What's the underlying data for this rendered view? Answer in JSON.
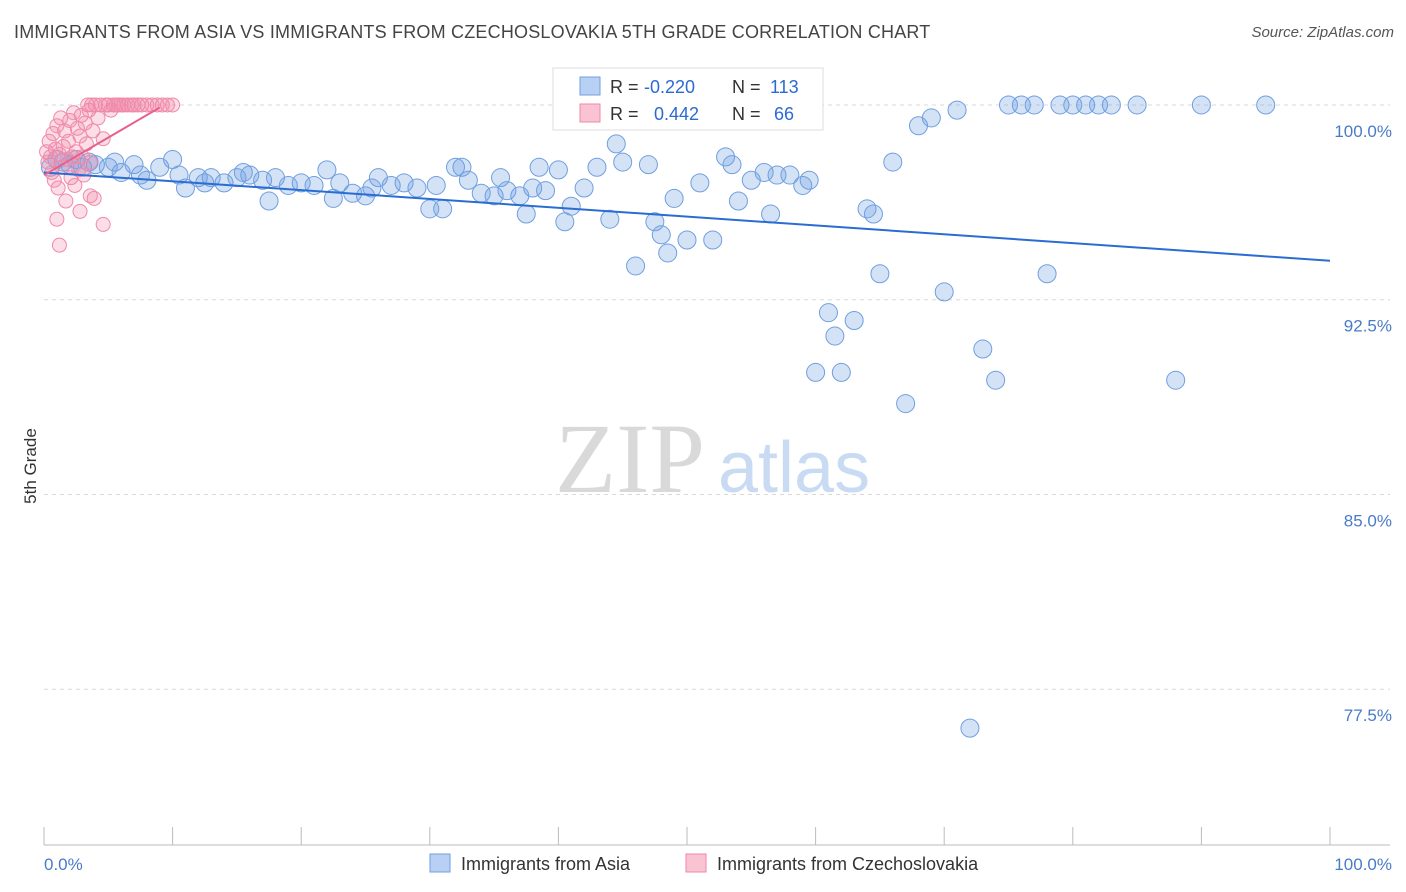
{
  "title": "IMMIGRANTS FROM ASIA VS IMMIGRANTS FROM CZECHOSLOVAKIA 5TH GRADE CORRELATION CHART",
  "source": "Source: ZipAtlas.com",
  "watermark": {
    "zip": "ZIP",
    "atlas": "atlas"
  },
  "colors": {
    "blue": "#6f9fe0",
    "blue_line": "#2a6dd2",
    "pink": "#f08aaa",
    "pink_line": "#e8608a",
    "tick": "#4a7bc8"
  },
  "legend": [
    {
      "r_label": "R = ",
      "r_value": "-0.220",
      "n_label": "N = ",
      "n_value": "113"
    },
    {
      "r_label": "R = ",
      "r_value": "0.442",
      "n_label": "N = ",
      "n_value": "66"
    }
  ],
  "chart_data": {
    "type": "scatter",
    "title": "IMMIGRANTS FROM ASIA VS IMMIGRANTS FROM CZECHOSLOVAKIA 5TH GRADE CORRELATION CHART",
    "xlabel": "",
    "ylabel": "5th Grade",
    "xlim": [
      0,
      100
    ],
    "ylim": [
      71.5,
      101.5
    ],
    "x_tick_labels": [
      "0.0%",
      "100.0%"
    ],
    "y_ticks": [
      100.0,
      92.5,
      85.0,
      77.5
    ],
    "y_tick_labels": [
      "100.0%",
      "92.5%",
      "85.0%",
      "77.5%"
    ],
    "series": [
      {
        "name": "Immigrants from Asia",
        "color": "#6f9fe0",
        "trend": {
          "x": [
            0,
            100
          ],
          "y": [
            97.4,
            94.0
          ]
        },
        "points": [
          [
            0.5,
            97.6
          ],
          [
            1,
            97.9
          ],
          [
            1.5,
            97.8
          ],
          [
            2,
            97.7
          ],
          [
            2.5,
            97.9
          ],
          [
            3,
            97.6
          ],
          [
            3.5,
            97.8
          ],
          [
            4,
            97.7
          ],
          [
            5,
            97.6
          ],
          [
            5.5,
            97.8
          ],
          [
            6,
            97.4
          ],
          [
            7,
            97.7
          ],
          [
            7.5,
            97.3
          ],
          [
            8,
            97.1
          ],
          [
            9,
            97.6
          ],
          [
            10,
            97.9
          ],
          [
            10.5,
            97.3
          ],
          [
            11,
            96.8
          ],
          [
            12,
            97.2
          ],
          [
            12.5,
            97.0
          ],
          [
            13,
            97.2
          ],
          [
            14,
            97.0
          ],
          [
            15,
            97.2
          ],
          [
            15.5,
            97.4
          ],
          [
            16,
            97.3
          ],
          [
            17,
            97.1
          ],
          [
            17.5,
            96.3
          ],
          [
            18,
            97.2
          ],
          [
            19,
            96.9
          ],
          [
            20,
            97.0
          ],
          [
            21,
            96.9
          ],
          [
            22,
            97.5
          ],
          [
            22.5,
            96.4
          ],
          [
            23,
            97.0
          ],
          [
            24,
            96.6
          ],
          [
            25,
            96.5
          ],
          [
            25.5,
            96.8
          ],
          [
            26,
            97.2
          ],
          [
            27,
            96.9
          ],
          [
            28,
            97.0
          ],
          [
            29,
            96.8
          ],
          [
            30,
            96.0
          ],
          [
            30.5,
            96.9
          ],
          [
            31,
            96.0
          ],
          [
            32,
            97.6
          ],
          [
            32.5,
            97.6
          ],
          [
            33,
            97.1
          ],
          [
            34,
            96.6
          ],
          [
            35,
            96.5
          ],
          [
            35.5,
            97.2
          ],
          [
            36,
            96.7
          ],
          [
            37,
            96.5
          ],
          [
            37.5,
            95.8
          ],
          [
            38,
            96.8
          ],
          [
            38.5,
            97.6
          ],
          [
            39,
            96.7
          ],
          [
            40,
            97.5
          ],
          [
            40.5,
            95.5
          ],
          [
            41,
            96.1
          ],
          [
            42,
            96.8
          ],
          [
            43,
            97.6
          ],
          [
            44,
            95.6
          ],
          [
            44.5,
            98.5
          ],
          [
            45,
            97.8
          ],
          [
            46,
            93.8
          ],
          [
            47,
            97.7
          ],
          [
            47.5,
            95.5
          ],
          [
            48,
            95.0
          ],
          [
            48.5,
            94.3
          ],
          [
            49,
            96.4
          ],
          [
            50,
            94.8
          ],
          [
            51,
            97.0
          ],
          [
            52,
            94.8
          ],
          [
            53,
            98.0
          ],
          [
            53.5,
            97.7
          ],
          [
            54,
            96.3
          ],
          [
            55,
            97.1
          ],
          [
            56,
            97.4
          ],
          [
            56.5,
            95.8
          ],
          [
            57,
            97.3
          ],
          [
            58,
            97.3
          ],
          [
            59,
            96.9
          ],
          [
            59.5,
            97.1
          ],
          [
            60,
            89.7
          ],
          [
            61,
            92.0
          ],
          [
            61.5,
            91.1
          ],
          [
            62,
            89.7
          ],
          [
            63,
            91.7
          ],
          [
            64,
            96.0
          ],
          [
            64.5,
            95.8
          ],
          [
            65,
            93.5
          ],
          [
            66,
            97.8
          ],
          [
            67,
            88.5
          ],
          [
            68,
            99.2
          ],
          [
            69,
            99.5
          ],
          [
            70,
            92.8
          ],
          [
            71,
            99.8
          ],
          [
            72,
            76.0
          ],
          [
            73,
            90.6
          ],
          [
            74,
            89.4
          ],
          [
            75,
            100
          ],
          [
            76,
            100
          ],
          [
            77,
            100
          ],
          [
            78,
            93.5
          ],
          [
            79,
            100
          ],
          [
            80,
            100
          ],
          [
            81,
            100
          ],
          [
            82,
            100
          ],
          [
            83,
            100
          ],
          [
            85,
            100
          ],
          [
            88,
            89.4
          ],
          [
            90,
            100
          ],
          [
            95,
            100
          ]
        ]
      },
      {
        "name": "Immigrants from Czechoslovakia",
        "color": "#f08aaa",
        "trend": {
          "x": [
            0,
            9
          ],
          "y": [
            97.3,
            99.9
          ]
        },
        "points": [
          [
            0.2,
            98.2
          ],
          [
            0.3,
            97.8
          ],
          [
            0.4,
            98.6
          ],
          [
            0.5,
            98.0
          ],
          [
            0.6,
            97.4
          ],
          [
            0.7,
            98.9
          ],
          [
            0.8,
            97.1
          ],
          [
            0.9,
            98.3
          ],
          [
            1.0,
            99.2
          ],
          [
            1.1,
            96.8
          ],
          [
            1.2,
            98.1
          ],
          [
            1.3,
            99.5
          ],
          [
            1.4,
            97.6
          ],
          [
            1.5,
            98.4
          ],
          [
            1.6,
            99.0
          ],
          [
            1.7,
            96.3
          ],
          [
            1.8,
            97.9
          ],
          [
            1.9,
            98.6
          ],
          [
            2.0,
            99.4
          ],
          [
            2.1,
            97.2
          ],
          [
            2.2,
            98.0
          ],
          [
            2.3,
            99.7
          ],
          [
            2.4,
            96.9
          ],
          [
            2.5,
            98.2
          ],
          [
            2.6,
            99.1
          ],
          [
            2.7,
            97.5
          ],
          [
            2.8,
            98.8
          ],
          [
            2.9,
            99.6
          ],
          [
            3.0,
            98.0
          ],
          [
            3.1,
            97.3
          ],
          [
            3.2,
            99.3
          ],
          [
            3.3,
            98.5
          ],
          [
            3.4,
            100
          ],
          [
            3.5,
            99.8
          ],
          [
            3.6,
            97.8
          ],
          [
            3.7,
            100
          ],
          [
            3.8,
            99.0
          ],
          [
            3.9,
            96.4
          ],
          [
            4.0,
            100
          ],
          [
            4.2,
            99.5
          ],
          [
            4.4,
            100
          ],
          [
            4.6,
            98.7
          ],
          [
            4.8,
            100
          ],
          [
            5.0,
            100
          ],
          [
            5.2,
            99.8
          ],
          [
            5.4,
            100
          ],
          [
            5.6,
            100
          ],
          [
            5.8,
            100
          ],
          [
            6.0,
            100
          ],
          [
            6.2,
            100
          ],
          [
            6.5,
            100
          ],
          [
            6.8,
            100
          ],
          [
            7.0,
            100
          ],
          [
            7.3,
            100
          ],
          [
            7.6,
            100
          ],
          [
            8.0,
            100
          ],
          [
            8.4,
            100
          ],
          [
            8.8,
            100
          ],
          [
            9.2,
            100
          ],
          [
            9.6,
            100
          ],
          [
            10.0,
            100
          ],
          [
            1.2,
            94.6
          ],
          [
            2.8,
            95.9
          ],
          [
            3.6,
            96.5
          ],
          [
            4.6,
            95.4
          ],
          [
            1.0,
            95.6
          ]
        ]
      }
    ],
    "legend_position": "top-center"
  }
}
